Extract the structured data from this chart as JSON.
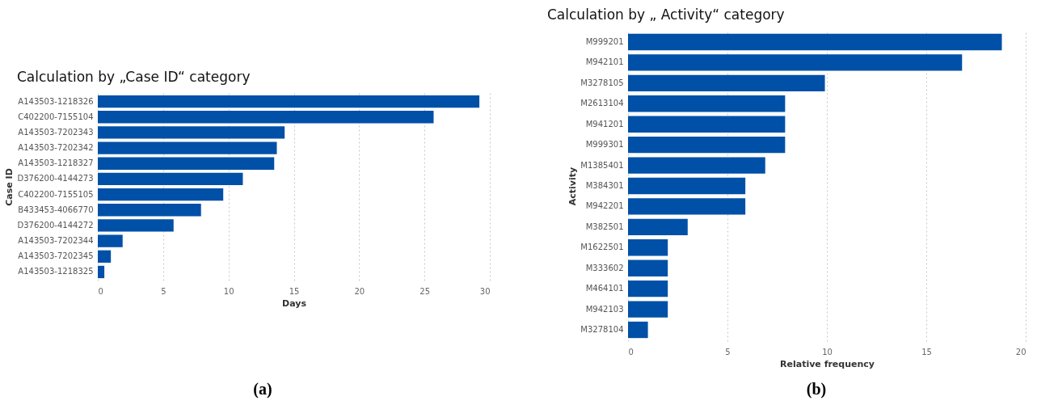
{
  "chart_data": [
    {
      "type": "bar",
      "orientation": "horizontal",
      "title": "Calculation by „Case ID“ category",
      "xlabel": "Days",
      "ylabel": "Case ID",
      "categories": [
        "A143503-1218326",
        "C402200-7155104",
        "A143503-7202343",
        "A143503-7202342",
        "A143503-1218327",
        "D376200-4144273",
        "C402200-7155105",
        "B433453-4066770",
        "D376200-4144272",
        "A143503-7202344",
        "A143503-7202345",
        "A143503-1218325"
      ],
      "values": [
        29.2,
        25.7,
        14.3,
        13.7,
        13.5,
        11.1,
        9.6,
        7.9,
        5.8,
        1.9,
        1.0,
        0.5
      ],
      "color": "#0050a8",
      "xlim": [
        0,
        30
      ],
      "xticks": [
        0,
        5,
        10,
        15,
        20,
        25,
        30
      ],
      "grid": "x",
      "annotations": [
        "(a)"
      ]
    },
    {
      "type": "bar",
      "orientation": "horizontal",
      "title": "Calculation by „ Activity“ category",
      "xlabel": "Relative frequency",
      "ylabel": "Activity",
      "categories": [
        "M999201",
        "M942101",
        "M3278105",
        "M2613104",
        "M941201",
        "M999301",
        "M1385401",
        "M384301",
        "M942201",
        "M382501",
        "M1622501",
        "M333602",
        "M464101",
        "M942103",
        "M3278104"
      ],
      "values": [
        18.8,
        16.8,
        9.9,
        7.9,
        7.9,
        7.9,
        6.9,
        5.9,
        5.9,
        3.0,
        2.0,
        2.0,
        2.0,
        2.0,
        1.0
      ],
      "color": "#0050a8",
      "xlim": [
        0,
        20
      ],
      "xticks": [
        0,
        5,
        10,
        15,
        20
      ],
      "grid": "x",
      "annotations": [
        "(b)"
      ]
    }
  ]
}
